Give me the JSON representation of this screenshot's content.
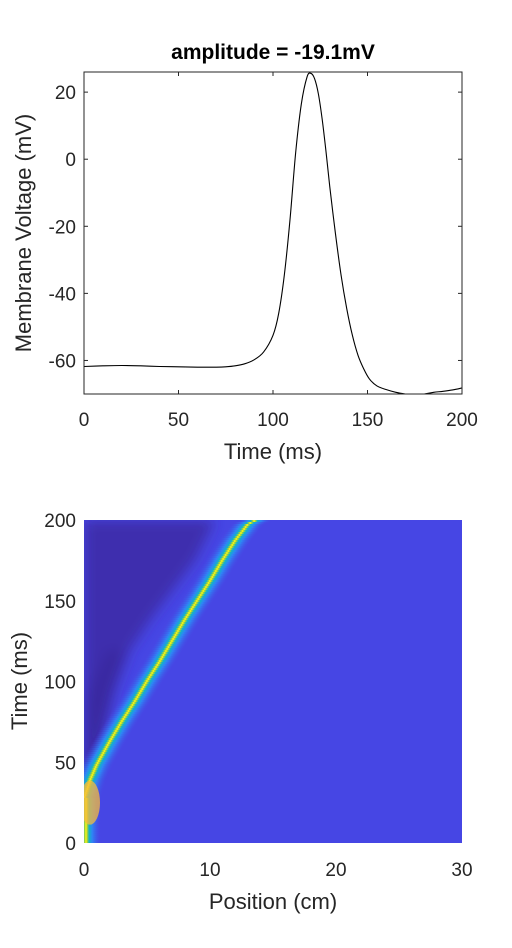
{
  "chart_data": [
    {
      "type": "line",
      "title": "amplitude = -19.1mV",
      "xlabel": "Time (ms)",
      "ylabel": "Membrane Voltage (mV)",
      "xlim": [
        0,
        200
      ],
      "ylim": [
        -70,
        26
      ],
      "xticks": [
        "0",
        "50",
        "100",
        "150",
        "200"
      ],
      "yticks": [
        "-60",
        "-40",
        "-20",
        "0",
        "20"
      ],
      "grid": false,
      "series": [
        {
          "color": "#000000",
          "x": [
            0,
            10,
            20,
            30,
            40,
            50,
            60,
            70,
            75,
            80,
            85,
            90,
            95,
            100,
            103,
            106,
            109,
            112,
            115,
            118,
            120,
            122,
            124,
            126,
            128,
            130,
            133,
            136,
            139,
            142,
            145,
            148,
            151,
            155,
            160,
            165,
            170,
            175,
            180,
            185,
            190,
            195,
            200
          ],
          "y": [
            -61.8,
            -61.6,
            -61.5,
            -61.6,
            -61.8,
            -61.9,
            -62.0,
            -62.0,
            -61.9,
            -61.6,
            -61.0,
            -59.8,
            -57.5,
            -52.5,
            -46.0,
            -34.5,
            -18.0,
            2.0,
            16.5,
            24.5,
            25.6,
            24.0,
            19.5,
            12.0,
            2.5,
            -8.0,
            -22.0,
            -34.5,
            -44.5,
            -52.5,
            -58.5,
            -62.5,
            -65.5,
            -67.6,
            -68.7,
            -69.5,
            -70.0,
            -70.3,
            -70.0,
            -69.5,
            -69.2,
            -68.8,
            -68.2
          ]
        }
      ]
    },
    {
      "type": "heatmap",
      "xlabel": "Position (cm)",
      "ylabel": "Time (ms)",
      "xlim": [
        0,
        30
      ],
      "ylim": [
        0,
        200
      ],
      "xticks": [
        "0",
        "10",
        "20",
        "30"
      ],
      "yticks": [
        "0",
        "50",
        "100",
        "150",
        "200"
      ],
      "colormap": [
        "#3e26a8",
        "#4746e6",
        "#2e86f5",
        "#12b2c8",
        "#48cb86",
        "#a7c42e",
        "#f7ba3c",
        "#f9fb14"
      ],
      "background_color": "#4646e4",
      "wave_ridge": {
        "position_cm": [
          0,
          0.5,
          1,
          2,
          3,
          4,
          5,
          6,
          7,
          8,
          9,
          10,
          11,
          12,
          13,
          13.5
        ],
        "time_ms": [
          28,
          40,
          49,
          63,
          76,
          88,
          101,
          113,
          126,
          139,
          151,
          163,
          176,
          188,
          198,
          200
        ]
      }
    }
  ]
}
